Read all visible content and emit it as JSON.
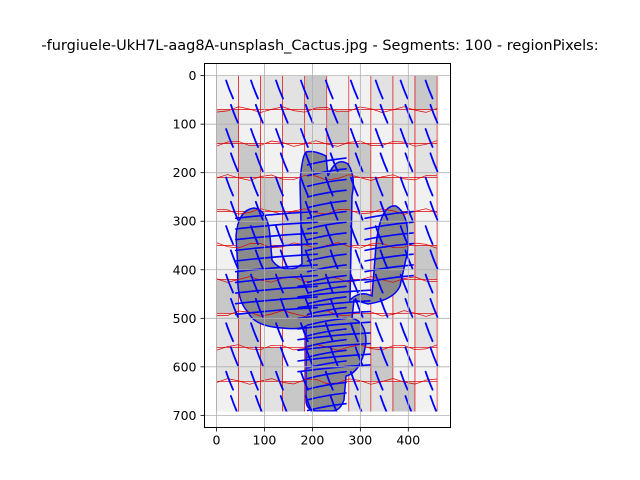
{
  "figure": {
    "title": "-furgiuele-UkH7L-aag8A-unsplash_Cactus.jpg - Segments: 100 - regionPixels:"
  },
  "colors": {
    "background": "#f1f1f1",
    "segment_light": "#e2e2e2",
    "segment_mid": "#c8c8c8",
    "cactus": "#8a8a8a",
    "cactus_dark": "#6e6e6e",
    "boundary": "#dd0000",
    "stroke": "#0000ff",
    "grid": "#b0b0b0"
  },
  "chart_data": {
    "type": "heatmap",
    "title": "-furgiuele-UkH7L-aag8A-unsplash_Cactus.jpg - Segments: 100 - regionPixels:",
    "xlabel": "",
    "ylabel": "",
    "xlim": [
      -25,
      488
    ],
    "ylim": [
      725,
      -25
    ],
    "image_extent": [
      0,
      460,
      0,
      700
    ],
    "segments": 100,
    "grid": true,
    "xticks": [
      0,
      100,
      200,
      300,
      400
    ],
    "yticks": [
      0,
      100,
      200,
      300,
      400,
      500,
      600,
      700
    ],
    "xtick_labels": [
      "0",
      "100",
      "200",
      "300",
      "400"
    ],
    "ytick_labels": [
      "0",
      "100",
      "200",
      "300",
      "400",
      "500",
      "600",
      "700"
    ]
  }
}
